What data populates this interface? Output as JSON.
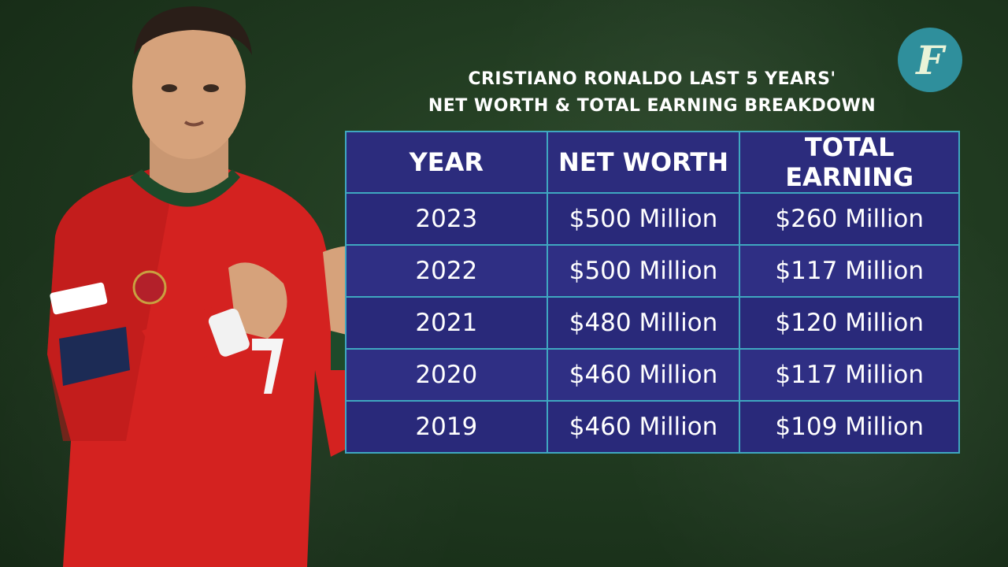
{
  "title": {
    "line1": "CRISTIANO RONALDO LAST 5 YEARS'",
    "line2": "NET WORTH & TOTAL EARNING BREAKDOWN"
  },
  "logo_letter": "F",
  "table": {
    "headers": [
      "YEAR",
      "NET WORTH",
      "TOTAL EARNING"
    ],
    "rows": [
      {
        "year": "2023",
        "net_worth": "$500 Million",
        "total_earning": "$260 Million"
      },
      {
        "year": "2022",
        "net_worth": "$500 Million",
        "total_earning": "$117 Million"
      },
      {
        "year": "2021",
        "net_worth": "$480 Million",
        "total_earning": "$120 Million"
      },
      {
        "year": "2020",
        "net_worth": "$460 Million",
        "total_earning": "$117 Million"
      },
      {
        "year": "2019",
        "net_worth": "$460 Million",
        "total_earning": "$109 Million"
      }
    ]
  },
  "colors": {
    "background": "#203a20",
    "table_fill": "#2a2a78",
    "table_border": "#3fa7c0",
    "logo": "#2f8f9c",
    "jersey": "#d9211f"
  }
}
